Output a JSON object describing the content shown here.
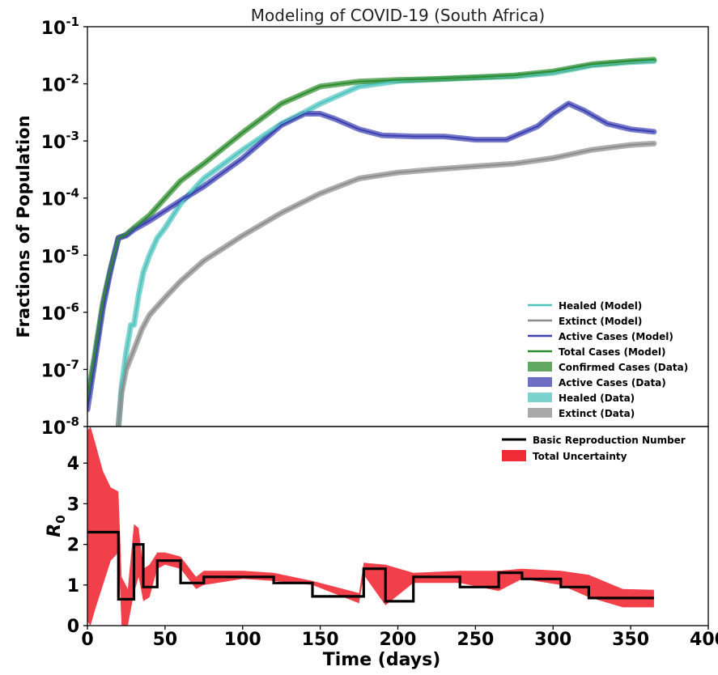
{
  "chart_data": [
    {
      "type": "line",
      "title": "Modeling of COVID-19 (South Africa)",
      "ylabel": "Fractions of Population",
      "xlim": [
        0,
        400
      ],
      "ylim": [
        1e-08,
        0.1
      ],
      "yscale": "log",
      "yticks": [
        {
          "base": "10",
          "exp": "-8"
        },
        {
          "base": "10",
          "exp": "-7"
        },
        {
          "base": "10",
          "exp": "-6"
        },
        {
          "base": "10",
          "exp": "-5"
        },
        {
          "base": "10",
          "exp": "-4"
        },
        {
          "base": "10",
          "exp": "-3"
        },
        {
          "base": "10",
          "exp": "-2"
        },
        {
          "base": "10",
          "exp": "-1"
        }
      ],
      "legend_position": "lower-right",
      "series": [
        {
          "name": "Healed (Data)",
          "style": "data",
          "color": "#4fc3be",
          "x": [
            20,
            22,
            25,
            28,
            30,
            33,
            36,
            40,
            45,
            50,
            60,
            75,
            100,
            125,
            140,
            150,
            175,
            200,
            225,
            250,
            275,
            300,
            325,
            350,
            365
          ],
          "y": [
            1e-08,
            5e-08,
            2e-07,
            6e-07,
            6e-07,
            2e-06,
            5e-06,
            1e-05,
            2e-05,
            3e-05,
            8e-05,
            0.00022,
            0.0007,
            0.002,
            0.0032,
            0.0045,
            0.009,
            0.0112,
            0.012,
            0.0128,
            0.0135,
            0.0155,
            0.021,
            0.024,
            0.025
          ]
        },
        {
          "name": "Extinct (Data)",
          "style": "data",
          "color": "#8c8c8c",
          "x": [
            20,
            22,
            25,
            30,
            35,
            40,
            50,
            60,
            75,
            100,
            125,
            150,
            175,
            200,
            225,
            250,
            275,
            300,
            325,
            350,
            365
          ],
          "y": [
            1e-08,
            4e-08,
            1e-07,
            2.2e-07,
            5e-07,
            9e-07,
            1.8e-06,
            3.5e-06,
            8e-06,
            2.2e-05,
            5.5e-05,
            0.00012,
            0.00022,
            0.00028,
            0.00032,
            0.00036,
            0.0004,
            0.0005,
            0.0007,
            0.00085,
            0.0009
          ]
        },
        {
          "name": "Confirmed Cases (Data)",
          "style": "data",
          "color": "#2e8b2e",
          "x": [
            0,
            5,
            10,
            15,
            20,
            25,
            30,
            40,
            50,
            60,
            75,
            100,
            125,
            150,
            175,
            200,
            225,
            250,
            275,
            300,
            325,
            350,
            365
          ],
          "y": [
            3e-08,
            2e-07,
            1.5e-06,
            6e-06,
            2e-05,
            2.3e-05,
            3e-05,
            5e-05,
            0.0001,
            0.0002,
            0.0004,
            0.0014,
            0.0045,
            0.009,
            0.011,
            0.0117,
            0.0122,
            0.013,
            0.014,
            0.0165,
            0.022,
            0.025,
            0.0265
          ]
        },
        {
          "name": "Active Cases (Data)",
          "style": "data",
          "color": "#3b3fb0",
          "x": [
            0,
            5,
            10,
            15,
            20,
            25,
            30,
            40,
            50,
            60,
            75,
            100,
            125,
            140,
            150,
            160,
            175,
            190,
            210,
            230,
            250,
            270,
            290,
            300,
            310,
            320,
            335,
            350,
            365
          ],
          "y": [
            2e-08,
            1.5e-07,
            1.2e-06,
            5.5e-06,
            2e-05,
            2.2e-05,
            2.8e-05,
            4e-05,
            6e-05,
            9e-05,
            0.00016,
            0.0005,
            0.0019,
            0.003,
            0.003,
            0.0024,
            0.0016,
            0.00125,
            0.0012,
            0.0012,
            0.00105,
            0.00105,
            0.0018,
            0.003,
            0.0045,
            0.0034,
            0.002,
            0.0016,
            0.00145
          ]
        },
        {
          "name": "Healed (Model)",
          "style": "model",
          "color": "#4fc3be",
          "x": [
            20,
            22,
            25,
            28,
            30,
            33,
            36,
            40,
            45,
            50,
            60,
            75,
            100,
            125,
            140,
            150,
            175,
            200,
            225,
            250,
            275,
            300,
            325,
            350,
            365
          ],
          "y": [
            1e-08,
            5e-08,
            2e-07,
            6e-07,
            6e-07,
            2e-06,
            5e-06,
            1e-05,
            2e-05,
            3e-05,
            8e-05,
            0.00022,
            0.0007,
            0.002,
            0.0032,
            0.0045,
            0.009,
            0.0112,
            0.012,
            0.0128,
            0.0135,
            0.0155,
            0.021,
            0.024,
            0.025
          ]
        },
        {
          "name": "Extinct (Model)",
          "style": "model",
          "color": "#8c8c8c",
          "x": [
            20,
            22,
            25,
            30,
            35,
            40,
            50,
            60,
            75,
            100,
            125,
            150,
            175,
            200,
            225,
            250,
            275,
            300,
            325,
            350,
            365
          ],
          "y": [
            1e-08,
            4e-08,
            1e-07,
            2.2e-07,
            5e-07,
            9e-07,
            1.8e-06,
            3.5e-06,
            8e-06,
            2.2e-05,
            5.5e-05,
            0.00012,
            0.00022,
            0.00028,
            0.00032,
            0.00036,
            0.0004,
            0.0005,
            0.0007,
            0.00085,
            0.0009
          ]
        },
        {
          "name": "Active Cases (Model)",
          "style": "model",
          "color": "#3b3fb0",
          "x": [
            0,
            5,
            10,
            15,
            20,
            25,
            30,
            40,
            50,
            60,
            75,
            100,
            125,
            140,
            150,
            160,
            175,
            190,
            210,
            230,
            250,
            270,
            290,
            300,
            310,
            320,
            335,
            350,
            365
          ],
          "y": [
            2e-08,
            1.5e-07,
            1.2e-06,
            5.5e-06,
            2e-05,
            2.2e-05,
            2.8e-05,
            4e-05,
            6e-05,
            9e-05,
            0.00016,
            0.0005,
            0.0019,
            0.003,
            0.003,
            0.0024,
            0.0016,
            0.00125,
            0.0012,
            0.0012,
            0.00105,
            0.00105,
            0.0018,
            0.003,
            0.0045,
            0.0034,
            0.002,
            0.0016,
            0.00145
          ]
        },
        {
          "name": "Total Cases (Model)",
          "style": "model",
          "color": "#2e8b2e",
          "x": [
            0,
            5,
            10,
            15,
            20,
            25,
            30,
            40,
            50,
            60,
            75,
            100,
            125,
            150,
            175,
            200,
            225,
            250,
            275,
            300,
            325,
            350,
            365
          ],
          "y": [
            3e-08,
            2e-07,
            1.5e-06,
            6e-06,
            2e-05,
            2.3e-05,
            3e-05,
            5e-05,
            0.0001,
            0.0002,
            0.0004,
            0.0014,
            0.0045,
            0.009,
            0.011,
            0.0117,
            0.0122,
            0.013,
            0.014,
            0.0165,
            0.022,
            0.025,
            0.0265
          ]
        }
      ],
      "legend": [
        {
          "label": "Healed (Model)",
          "color": "#4fc3be",
          "style": "model"
        },
        {
          "label": "Extinct (Model)",
          "color": "#8c8c8c",
          "style": "model"
        },
        {
          "label": "Active Cases (Model)",
          "color": "#3b3fb0",
          "style": "model"
        },
        {
          "label": "Total Cases (Model)",
          "color": "#2e8b2e",
          "style": "model"
        },
        {
          "label": "Confirmed Cases (Data)",
          "color": "#2e8b2e",
          "style": "data"
        },
        {
          "label": "Active Cases (Data)",
          "color": "#3b3fb0",
          "style": "data"
        },
        {
          "label": "Healed (Data)",
          "color": "#4fc3be",
          "style": "data"
        },
        {
          "label": "Extinct (Data)",
          "color": "#8c8c8c",
          "style": "data"
        }
      ]
    },
    {
      "type": "step",
      "xlabel": "Time (days)",
      "ylabel": "R0",
      "xlim": [
        0,
        400
      ],
      "ylim": [
        0,
        4.9
      ],
      "xticks": [
        "0",
        "50",
        "100",
        "150",
        "200",
        "250",
        "300",
        "350",
        "400"
      ],
      "yticks": [
        "0",
        "1",
        "2",
        "3",
        "4"
      ],
      "legend_position": "upper-right",
      "r0_name": "Basic Reproduction Number",
      "r0_color": "#000000",
      "r0_steps": [
        {
          "start": 0,
          "end": 20,
          "value": 2.3
        },
        {
          "start": 20,
          "end": 30,
          "value": 0.65
        },
        {
          "start": 30,
          "end": 36,
          "value": 2.0
        },
        {
          "start": 36,
          "end": 45,
          "value": 0.95
        },
        {
          "start": 45,
          "end": 60,
          "value": 1.6
        },
        {
          "start": 60,
          "end": 75,
          "value": 1.05
        },
        {
          "start": 75,
          "end": 120,
          "value": 1.2
        },
        {
          "start": 120,
          "end": 145,
          "value": 1.05
        },
        {
          "start": 145,
          "end": 178,
          "value": 0.72
        },
        {
          "start": 178,
          "end": 192,
          "value": 1.4
        },
        {
          "start": 192,
          "end": 210,
          "value": 0.6
        },
        {
          "start": 210,
          "end": 240,
          "value": 1.2
        },
        {
          "start": 240,
          "end": 265,
          "value": 0.95
        },
        {
          "start": 265,
          "end": 280,
          "value": 1.3
        },
        {
          "start": 280,
          "end": 305,
          "value": 1.15
        },
        {
          "start": 305,
          "end": 323,
          "value": 0.95
        },
        {
          "start": 323,
          "end": 365,
          "value": 0.68
        }
      ],
      "uncertainty_name": "Total Uncertainty",
      "uncertainty_color": "#ef2b35",
      "uncertainty_band": {
        "x": [
          0,
          2,
          5,
          10,
          15,
          20,
          22,
          26,
          30,
          33,
          36,
          40,
          45,
          50,
          55,
          60,
          70,
          75,
          100,
          120,
          145,
          175,
          178,
          192,
          210,
          240,
          265,
          280,
          305,
          323,
          345,
          365
        ],
        "upper": [
          4.8,
          4.9,
          4.5,
          3.8,
          3.4,
          3.3,
          1.2,
          0.9,
          2.5,
          2.4,
          1.4,
          1.5,
          1.8,
          1.8,
          1.75,
          1.7,
          1.2,
          1.35,
          1.35,
          1.3,
          1.1,
          0.8,
          1.55,
          1.5,
          1.3,
          1.35,
          1.35,
          1.4,
          1.35,
          1.25,
          0.9,
          0.88
        ],
        "lower": [
          0.1,
          0.0,
          0.4,
          1.0,
          1.6,
          1.8,
          0.0,
          0.0,
          0.8,
          1.2,
          0.6,
          0.7,
          1.4,
          1.5,
          1.45,
          1.4,
          0.9,
          1.0,
          1.15,
          1.1,
          1.0,
          0.55,
          1.25,
          0.5,
          1.05,
          1.05,
          0.85,
          1.15,
          1.0,
          0.7,
          0.45,
          0.45
        ]
      },
      "legend": [
        {
          "label": "Basic Reproduction Number",
          "color": "#000000",
          "style": "line"
        },
        {
          "label": "Total Uncertainty",
          "color": "#ef2b35",
          "style": "band"
        }
      ]
    }
  ]
}
